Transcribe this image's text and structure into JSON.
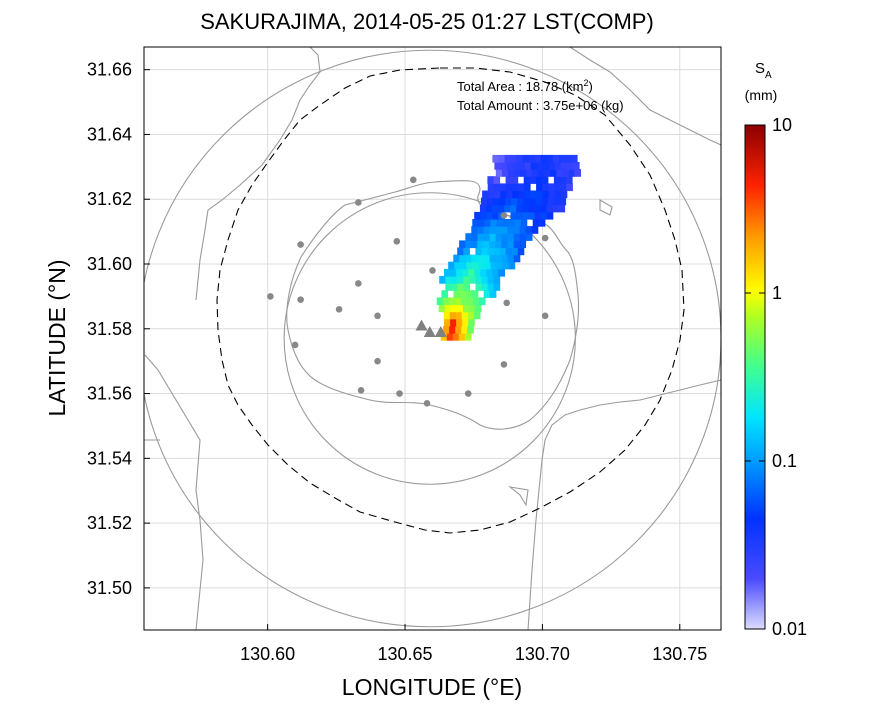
{
  "chart_data": {
    "type": "heatmap",
    "title": "SAKURAJIMA, 2014-05-25 01:27 LST(COMP)",
    "xlabel": "LONGITUDE (°E)",
    "ylabel": "LATITUDE (°N)",
    "xlim": [
      130.555,
      130.765
    ],
    "ylim": [
      31.487,
      31.667
    ],
    "x_ticks": [
      "130.60",
      "130.65",
      "130.70",
      "130.75"
    ],
    "x_tick_values": [
      130.6,
      130.65,
      130.7,
      130.75
    ],
    "y_ticks": [
      "31.50",
      "31.52",
      "31.54",
      "31.56",
      "31.58",
      "31.60",
      "31.62",
      "31.64",
      "31.66"
    ],
    "y_tick_values": [
      31.5,
      31.52,
      31.54,
      31.56,
      31.58,
      31.6,
      31.62,
      31.64,
      31.66
    ],
    "grid": true,
    "annotations": {
      "area_label": "Total Area  : 18.78 (km",
      "area_sup": "2",
      "area_close": ")",
      "amount_label": "Total Amount : 3.75e+06 (kg)"
    },
    "colorbar": {
      "label_main": "S",
      "label_sub": "A",
      "unit": "(mm)",
      "scale": "log",
      "range": [
        0.01,
        10
      ],
      "tick_labels": [
        "10",
        "1",
        "0.1",
        "0.01"
      ],
      "tick_values": [
        10,
        1,
        0.1,
        0.01
      ]
    },
    "plume": {
      "description_free": true,
      "cell_size_deg": 0.0022,
      "cells_by_latitude": [
        {
          "lat": 31.628,
          "lon_min": 130.683,
          "lon_max": 130.712,
          "lon_peak": 130.7,
          "value_edge": 0.02,
          "value_peak": 0.04
        },
        {
          "lat": 31.618,
          "lon_min": 130.678,
          "lon_max": 130.708,
          "lon_peak": 130.69,
          "value_edge": 0.03,
          "value_peak": 0.06
        },
        {
          "lat": 31.608,
          "lon_min": 130.673,
          "lon_max": 130.696,
          "lon_peak": 130.682,
          "value_edge": 0.05,
          "value_peak": 0.12
        },
        {
          "lat": 31.598,
          "lon_min": 130.665,
          "lon_max": 130.687,
          "lon_peak": 130.674,
          "value_edge": 0.08,
          "value_peak": 0.25
        },
        {
          "lat": 31.588,
          "lon_min": 130.662,
          "lon_max": 130.679,
          "lon_peak": 130.668,
          "value_edge": 0.2,
          "value_peak": 0.7
        },
        {
          "lat": 31.58,
          "lon_min": 130.663,
          "lon_max": 130.673,
          "lon_peak": 130.666,
          "value_edge": 0.5,
          "value_peak": 5.0
        }
      ]
    },
    "stations": [
      {
        "lon": 130.653,
        "lat": 31.626
      },
      {
        "lon": 130.633,
        "lat": 31.619
      },
      {
        "lon": 130.612,
        "lat": 31.606
      },
      {
        "lon": 130.647,
        "lat": 31.607
      },
      {
        "lon": 130.66,
        "lat": 31.598
      },
      {
        "lon": 130.601,
        "lat": 31.59
      },
      {
        "lon": 130.612,
        "lat": 31.589
      },
      {
        "lon": 130.633,
        "lat": 31.594
      },
      {
        "lon": 130.626,
        "lat": 31.586
      },
      {
        "lon": 130.64,
        "lat": 31.584
      },
      {
        "lon": 130.687,
        "lat": 31.588
      },
      {
        "lon": 130.701,
        "lat": 31.584
      },
      {
        "lon": 130.61,
        "lat": 31.575
      },
      {
        "lon": 130.64,
        "lat": 31.57
      },
      {
        "lon": 130.686,
        "lat": 31.569
      },
      {
        "lon": 130.634,
        "lat": 31.561
      },
      {
        "lon": 130.648,
        "lat": 31.56
      },
      {
        "lon": 130.658,
        "lat": 31.557
      },
      {
        "lon": 130.673,
        "lat": 31.56
      },
      {
        "lon": 130.686,
        "lat": 31.615
      },
      {
        "lon": 130.701,
        "lat": 31.608
      }
    ],
    "vents": [
      {
        "lon": 130.656,
        "lat": 31.581
      },
      {
        "lon": 130.659,
        "lat": 31.579
      },
      {
        "lon": 130.663,
        "lat": 31.579
      }
    ],
    "range_rings": [
      {
        "center_lon": 130.659,
        "center_lat": 31.577,
        "radius_deg_lon": 0.106,
        "radius_deg_lat": 0.089
      },
      {
        "center_lon": 130.659,
        "center_lat": 31.577,
        "radius_deg_lon": 0.053,
        "radius_deg_lat": 0.045
      }
    ]
  }
}
